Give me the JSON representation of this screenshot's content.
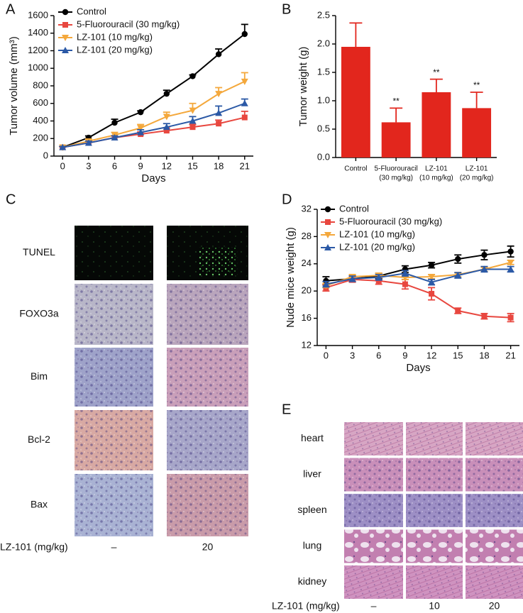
{
  "chart_data": [
    {
      "type": "line",
      "panel": "A",
      "x_label": "Days",
      "y_label": "Tumor volume (mm³)",
      "x": [
        0,
        3,
        6,
        9,
        12,
        15,
        18,
        21
      ],
      "xlim": [
        -1,
        22
      ],
      "xticks": [
        0,
        3,
        6,
        9,
        12,
        15,
        18,
        21
      ],
      "ylim": [
        0,
        1600
      ],
      "yticks": [
        0,
        200,
        400,
        600,
        800,
        1000,
        1200,
        1400,
        1600
      ],
      "error_bars": "upper",
      "series": [
        {
          "name": "Control",
          "color": "#000000",
          "marker": "o",
          "values": [
            100,
            210,
            380,
            500,
            710,
            910,
            1160,
            1390
          ],
          "errors": [
            10,
            20,
            40,
            15,
            40,
            15,
            60,
            110
          ]
        },
        {
          "name": "5-Fluorouracil (30 mg/kg)",
          "color": "#e8473f",
          "marker": "s",
          "values": [
            100,
            150,
            210,
            250,
            290,
            330,
            370,
            440
          ],
          "errors": [
            10,
            15,
            20,
            25,
            30,
            30,
            40,
            70
          ]
        },
        {
          "name": "LZ-101 (10 mg/kg)",
          "color": "#f4a83c",
          "marker": "v",
          "values": [
            100,
            170,
            240,
            320,
            450,
            520,
            710,
            850
          ],
          "errors": [
            10,
            20,
            30,
            40,
            50,
            80,
            70,
            100
          ]
        },
        {
          "name": "LZ-101 (20 mg/kg)",
          "color": "#2b59a6",
          "marker": "^",
          "values": [
            100,
            150,
            210,
            270,
            330,
            400,
            490,
            600
          ],
          "errors": [
            10,
            20,
            20,
            30,
            40,
            50,
            80,
            50
          ]
        }
      ]
    },
    {
      "type": "bar",
      "panel": "B",
      "y_label": "Tumor weight (g)",
      "categories": [
        [
          "Control"
        ],
        [
          "5-Fluorouracil",
          "(30 mg/kg)"
        ],
        [
          "LZ-101",
          "(10 mg/kg)"
        ],
        [
          "LZ-101",
          "(20 mg/kg)"
        ]
      ],
      "values": [
        1.95,
        0.62,
        1.15,
        0.87
      ],
      "errors": [
        0.42,
        0.25,
        0.23,
        0.28
      ],
      "annotations": [
        null,
        "**",
        "**",
        "**"
      ],
      "color": "#e2261d",
      "ylim": [
        0,
        2.5
      ],
      "yticks": [
        {
          "value": 0,
          "label": "0.0"
        },
        0.5,
        {
          "value": 1,
          "label": "1.0"
        },
        1.5,
        {
          "value": 2,
          "label": "2.0"
        },
        2.5
      ]
    },
    {
      "type": "line",
      "panel": "D",
      "x_label": "Days",
      "y_label": "Nude mice weight (g)",
      "x": [
        0,
        3,
        6,
        9,
        12,
        15,
        18,
        21
      ],
      "xlim": [
        -1,
        22
      ],
      "xticks": [
        0,
        3,
        6,
        9,
        12,
        15,
        18,
        21
      ],
      "ylim": [
        12,
        32
      ],
      "yticks": [
        12,
        16,
        20,
        24,
        28,
        32
      ],
      "error_bars": "both",
      "series": [
        {
          "name": "Control",
          "color": "#000000",
          "marker": "o",
          "values": [
            21.5,
            21.8,
            22.2,
            23.2,
            23.8,
            24.7,
            25.3,
            25.8
          ],
          "errors": [
            0.6,
            0.4,
            0.4,
            0.5,
            0.4,
            0.6,
            0.7,
            0.8
          ]
        },
        {
          "name": "5-Fluorouracil (30 mg/kg)",
          "color": "#e8473f",
          "marker": "s",
          "values": [
            20.5,
            21.7,
            21.5,
            21.0,
            19.6,
            17.1,
            16.3,
            16.1
          ],
          "errors": [
            0.5,
            0.4,
            0.5,
            0.7,
            0.9,
            0.4,
            0.4,
            0.6
          ]
        },
        {
          "name": "LZ-101 (10 mg/kg)",
          "color": "#f4a83c",
          "marker": "v",
          "values": [
            20.8,
            22.1,
            22.3,
            22.0,
            22.1,
            22.4,
            23.2,
            24.2
          ],
          "errors": [
            0.3,
            0.3,
            0.3,
            0.3,
            0.3,
            0.3,
            0.3,
            0.3
          ]
        },
        {
          "name": "LZ-101 (20 mg/kg)",
          "color": "#2b59a6",
          "marker": "^",
          "values": [
            21.0,
            21.8,
            22.0,
            22.6,
            21.3,
            22.3,
            23.2,
            23.2
          ],
          "errors": [
            0.4,
            0.4,
            0.4,
            0.4,
            0.4,
            0.4,
            0.4,
            0.4
          ]
        }
      ]
    }
  ],
  "panel_c": {
    "panel": "C",
    "rows": [
      "TUNEL",
      "FOXO3a",
      "Bim",
      "Bcl-2",
      "Bax"
    ],
    "treatment_label": "LZ-101 (mg/kg)",
    "columns": [
      "–",
      "20"
    ]
  },
  "panel_e": {
    "panel": "E",
    "rows": [
      "heart",
      "liver",
      "spleen",
      "lung",
      "kidney"
    ],
    "treatment_label": "LZ-101 (mg/kg)",
    "columns": [
      "–",
      "10",
      "20"
    ]
  }
}
